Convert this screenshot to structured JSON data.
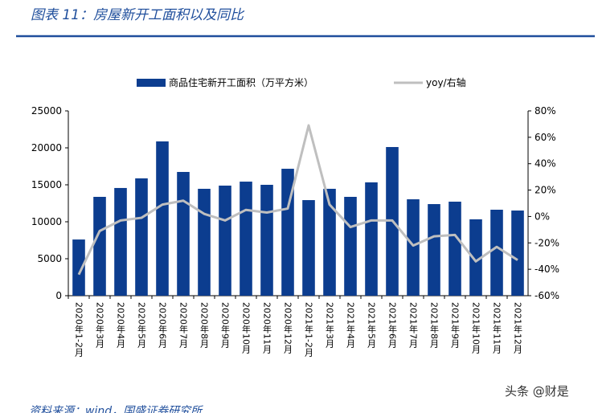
{
  "chart_data": {
    "type": "bar_line",
    "title": "图表 11：房屋新开工面积以及同比",
    "categories": [
      "2020年1-2月",
      "2020年3月",
      "2020年4月",
      "2020年5月",
      "2020年6月",
      "2020年7月",
      "2020年8月",
      "2020年9月",
      "2020年10月",
      "2020年11月",
      "2020年12月",
      "2021年1-2月",
      "2021年3月",
      "2021年4月",
      "2021年5月",
      "2021年6月",
      "2021年7月",
      "2021年8月",
      "2021年9月",
      "2021年10月",
      "2021年11月",
      "2021年12月"
    ],
    "series": [
      {
        "name": "商品住宅新开工面积（万平方米）",
        "type": "bar",
        "color": "#0c3d8f",
        "values": [
          7600,
          13370,
          14570,
          15870,
          20870,
          16740,
          14460,
          14890,
          15430,
          15000,
          17170,
          12930,
          14460,
          13370,
          15330,
          20110,
          13040,
          12390,
          12720,
          10330,
          11630,
          11520
        ]
      },
      {
        "name": "yoy/右轴",
        "type": "line",
        "axis": "y2",
        "color": "#bfbfbf",
        "values": [
          -44,
          -11,
          -3,
          -1,
          9,
          12,
          2,
          -3,
          5,
          3,
          6,
          69,
          9,
          -8,
          -3,
          -3,
          -22,
          -15,
          -14,
          -34,
          -23,
          -33
        ]
      }
    ],
    "ylim": [
      0,
      25000
    ],
    "yticks": [
      0,
      5000,
      10000,
      15000,
      20000,
      25000
    ],
    "y2lim": [
      -60,
      80
    ],
    "y2ticks": [
      {
        "value": -60,
        "label": "-60%"
      },
      {
        "value": -40,
        "label": "-40%"
      },
      {
        "value": -20,
        "label": "-20%"
      },
      {
        "value": 0,
        "label": "0%"
      },
      {
        "value": 20,
        "label": "20%"
      },
      {
        "value": 40,
        "label": "40%"
      },
      {
        "value": 60,
        "label": "60%"
      },
      {
        "value": 80,
        "label": "80%"
      }
    ],
    "grid": false,
    "legend": "top"
  },
  "source": "资料来源：wind，国盛证券研究所",
  "watermark": "头条 @财是"
}
